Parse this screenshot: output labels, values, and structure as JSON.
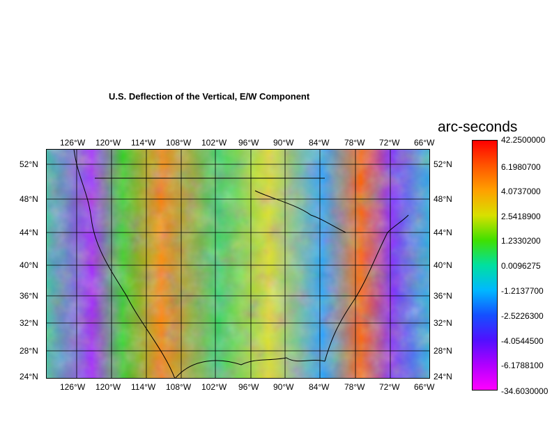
{
  "title": "U.S. Deflection of the Vertical, E/W Component",
  "colorbar": {
    "title": "arc-seconds",
    "labels": [
      "42.2500000",
      "6.1980700",
      "4.0737000",
      "2.5418900",
      "1.2330200",
      "0.0096275",
      "-1.2137700",
      "-2.5226300",
      "-4.0544500",
      "-6.1788100",
      "-34.6030000"
    ],
    "colors": [
      "#ff0000",
      "#ff5500",
      "#ffa000",
      "#d8e000",
      "#40e000",
      "#00e0a0",
      "#00b8ff",
      "#1450ff",
      "#5010ff",
      "#b000ff",
      "#ff00ff"
    ]
  },
  "axes": {
    "lon_labels": [
      "126°W",
      "120°W",
      "114°W",
      "108°W",
      "102°W",
      "96°W",
      "90°W",
      "84°W",
      "78°W",
      "72°W",
      "66°W"
    ],
    "lat_labels": [
      "52°N",
      "48°N",
      "44°N",
      "40°N",
      "36°N",
      "32°N",
      "28°N",
      "24°N"
    ]
  },
  "map": {
    "lon_range": [
      "130°W",
      "66°W"
    ],
    "lat_range": [
      "24°N",
      "54°N"
    ]
  }
}
